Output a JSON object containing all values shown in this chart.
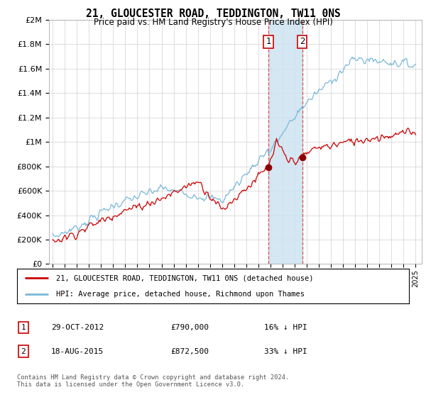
{
  "title": "21, GLOUCESTER ROAD, TEDDINGTON, TW11 0NS",
  "subtitle": "Price paid vs. HM Land Registry's House Price Index (HPI)",
  "legend_line1": "21, GLOUCESTER ROAD, TEDDINGTON, TW11 0NS (detached house)",
  "legend_line2": "HPI: Average price, detached house, Richmond upon Thames",
  "sale1_label": "1",
  "sale1_date": "29-OCT-2012",
  "sale1_price": "£790,000",
  "sale1_hpi": "16% ↓ HPI",
  "sale2_label": "2",
  "sale2_date": "18-AUG-2015",
  "sale2_price": "£872,500",
  "sale2_hpi": "33% ↓ HPI",
  "footer": "Contains HM Land Registry data © Crown copyright and database right 2024.\nThis data is licensed under the Open Government Licence v3.0.",
  "hpi_color": "#7ab8d9",
  "price_color": "#cc0000",
  "sale_marker_color": "#8b0000",
  "highlight_color": "#cde3f0",
  "vline_color": "#e05050",
  "background_color": "#ffffff",
  "ylim": [
    0,
    2000000
  ],
  "yticks": [
    0,
    200000,
    400000,
    600000,
    800000,
    1000000,
    1200000,
    1400000,
    1600000,
    1800000,
    2000000
  ],
  "ytick_labels": [
    "£0",
    "£200K",
    "£400K",
    "£600K",
    "£800K",
    "£1M",
    "£1.2M",
    "£1.4M",
    "£1.6M",
    "£1.8M",
    "£2M"
  ],
  "sale1_x": 2012.83,
  "sale2_x": 2015.63,
  "sale1_y": 790000,
  "sale2_y": 872500,
  "xmin": 1994.7,
  "xmax": 2025.5
}
